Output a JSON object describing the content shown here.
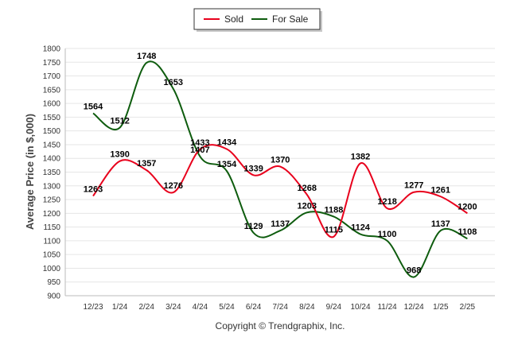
{
  "chart_data": {
    "type": "line",
    "categories": [
      "12/23",
      "1/24",
      "2/24",
      "3/24",
      "4/24",
      "5/24",
      "6/24",
      "7/24",
      "8/24",
      "9/24",
      "10/24",
      "11/24",
      "12/24",
      "1/25",
      "2/25"
    ],
    "series": [
      {
        "name": "Sold",
        "color": "#e8001c",
        "values": [
          1263,
          1390,
          1357,
          1276,
          1433,
          1434,
          1339,
          1370,
          1268,
          1115,
          1382,
          1218,
          1277,
          1261,
          1200
        ]
      },
      {
        "name": "For Sale",
        "color": "#0e5c0e",
        "values": [
          1564,
          1512,
          1748,
          1653,
          1407,
          1354,
          1129,
          1137,
          1203,
          1188,
          1124,
          1100,
          968,
          1137,
          1108
        ]
      }
    ],
    "title": "",
    "xlabel": "",
    "ylabel": "Average Price (in $,000)",
    "ylim": [
      900,
      1800
    ],
    "yticks": [
      900,
      950,
      1000,
      1050,
      1100,
      1150,
      1200,
      1250,
      1300,
      1350,
      1400,
      1450,
      1500,
      1550,
      1600,
      1650,
      1700,
      1750,
      1800
    ],
    "grid": true,
    "legend_position": "top-center"
  },
  "footer": {
    "copyright": "Copyright © Trendgraphix, Inc."
  }
}
